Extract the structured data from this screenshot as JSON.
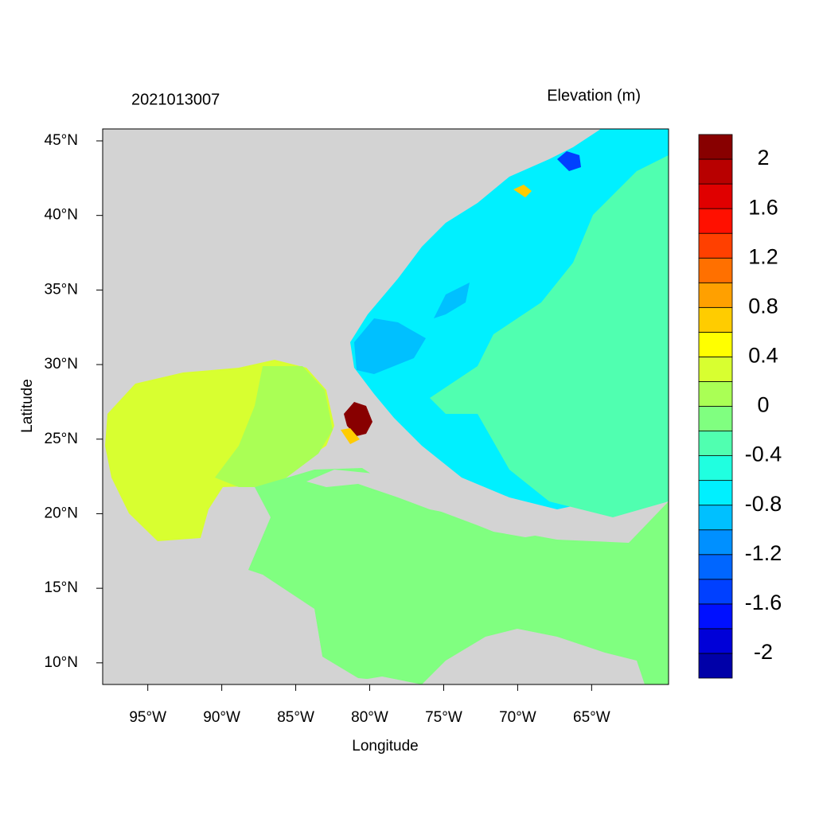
{
  "chart_data": {
    "type": "map",
    "left_title": "2021013007",
    "right_title": "Elevation (m)",
    "x_label": "Longitude",
    "y_label": "Latitude",
    "xlim": [
      -98.05,
      -59.8
    ],
    "ylim": [
      8.55,
      45.8
    ],
    "xticks": [
      {
        "value": -95,
        "label": "95°W"
      },
      {
        "value": -90,
        "label": "90°W"
      },
      {
        "value": -85,
        "label": "85°W"
      },
      {
        "value": -80,
        "label": "80°W"
      },
      {
        "value": -75,
        "label": "75°W"
      },
      {
        "value": -70,
        "label": "70°W"
      },
      {
        "value": -65,
        "label": "65°W"
      }
    ],
    "yticks": [
      {
        "value": 10,
        "label": "10°N"
      },
      {
        "value": 15,
        "label": "15°N"
      },
      {
        "value": 20,
        "label": "20°N"
      },
      {
        "value": 25,
        "label": "25°N"
      },
      {
        "value": 30,
        "label": "30°N"
      },
      {
        "value": 35,
        "label": "35°N"
      },
      {
        "value": 40,
        "label": "40°N"
      },
      {
        "value": 45,
        "label": "45°N"
      }
    ],
    "colorbar": {
      "levels": [
        -2.2,
        -2,
        -1.8,
        -1.6,
        -1.4,
        -1.2,
        -1,
        -0.8,
        -0.6,
        -0.4,
        -0.2,
        0,
        0.2,
        0.4,
        0.6,
        0.8,
        1,
        1.2,
        1.4,
        1.6,
        1.8,
        2,
        2.2
      ],
      "colors": [
        "#0000a8",
        "#0000d8",
        "#0010ff",
        "#0040ff",
        "#0066ff",
        "#0090ff",
        "#00c0ff",
        "#00f0ff",
        "#20ffe0",
        "#50ffb0",
        "#80ff80",
        "#aaff55",
        "#d8ff30",
        "#ffff00",
        "#ffcc00",
        "#ffa000",
        "#ff7000",
        "#ff4000",
        "#ff1000",
        "#e00000",
        "#b80000",
        "#880000"
      ],
      "ticks": [
        -2,
        -1.6,
        -1.2,
        -0.8,
        -0.4,
        0,
        0.4,
        0.8,
        1.2,
        1.6,
        2
      ]
    }
  }
}
